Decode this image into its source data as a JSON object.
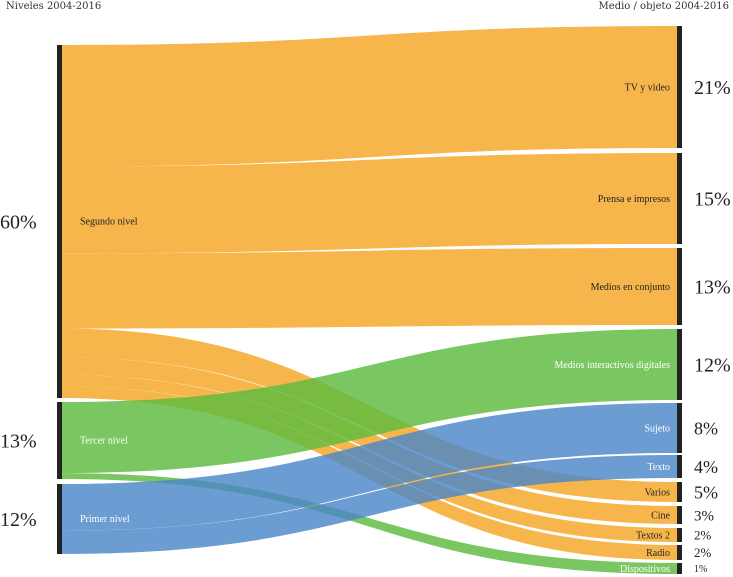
{
  "chart_data": {
    "type": "sankey",
    "left_header": "Niveles 2004-2016",
    "right_header": "Medio / objeto 2004-2016",
    "sources": [
      {
        "id": "segundo",
        "label": "Segundo nivel",
        "percent": "60%",
        "color": "#f5a623"
      },
      {
        "id": "tercer",
        "label": "Tercer nivel",
        "percent": "13%",
        "color": "#5dbb3f"
      },
      {
        "id": "primer",
        "label": "Primer nivel",
        "percent": "12%",
        "color": "#4a86c8"
      }
    ],
    "targets": [
      {
        "id": "tv",
        "label": "TV y video",
        "percent": "21%",
        "color": "#f5a623"
      },
      {
        "id": "prensa",
        "label": "Prensa e impresos",
        "percent": "15%",
        "color": "#f5a623"
      },
      {
        "id": "conjunto",
        "label": "Medios en conjunto",
        "percent": "13%",
        "color": "#f5a623"
      },
      {
        "id": "interactivos",
        "label": "Medios interactivos digitales",
        "percent": "12%",
        "color": "#5dbb3f"
      },
      {
        "id": "sujeto",
        "label": "Sujeto",
        "percent": "8%",
        "color": "#4a86c8"
      },
      {
        "id": "texto",
        "label": "Texto",
        "percent": "4%",
        "color": "#4a86c8"
      },
      {
        "id": "varios",
        "label": "Varios",
        "percent": "5%",
        "color": "#f5a623"
      },
      {
        "id": "cine",
        "label": "Cine",
        "percent": "3%",
        "color": "#f5a623"
      },
      {
        "id": "textos2",
        "label": "Textos 2",
        "percent": "2%",
        "color": "#f5a623"
      },
      {
        "id": "radio",
        "label": "Radio",
        "percent": "2%",
        "color": "#f5a623"
      },
      {
        "id": "dispositivos",
        "label": "Dispositivos",
        "percent": "1%",
        "color": "#5dbb3f"
      }
    ],
    "links": [
      {
        "source": "segundo",
        "target": "tv",
        "value": 21
      },
      {
        "source": "segundo",
        "target": "prensa",
        "value": 15
      },
      {
        "source": "segundo",
        "target": "conjunto",
        "value": 13
      },
      {
        "source": "segundo",
        "target": "varios",
        "value": 5
      },
      {
        "source": "segundo",
        "target": "cine",
        "value": 3
      },
      {
        "source": "segundo",
        "target": "textos2",
        "value": 2
      },
      {
        "source": "segundo",
        "target": "radio",
        "value": 2
      },
      {
        "source": "tercer",
        "target": "interactivos",
        "value": 12
      },
      {
        "source": "tercer",
        "target": "dispositivos",
        "value": 1
      },
      {
        "source": "primer",
        "target": "sujeto",
        "value": 8
      },
      {
        "source": "primer",
        "target": "texto",
        "value": 4
      }
    ]
  }
}
